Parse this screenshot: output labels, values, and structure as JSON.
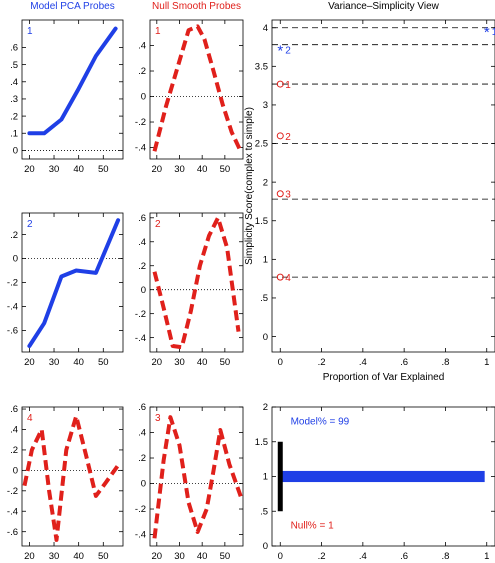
{
  "colors": {
    "model": "#1f3fe6",
    "null": "#e0201b",
    "axis": "#000000",
    "guide": "#000000"
  },
  "chart_data": [
    {
      "id": "model-pc1",
      "type": "line",
      "title": "Model PCA Probes",
      "panel_label": "1",
      "x": [
        20,
        26,
        33,
        40,
        47,
        55
      ],
      "series": [
        {
          "values": [
            0.1,
            0.1,
            0.18,
            0.36,
            0.55,
            0.71
          ],
          "color": "model",
          "dashed": false
        }
      ],
      "xlim": [
        17,
        58
      ],
      "ylim": [
        -0.05,
        0.76
      ],
      "xticks": [
        20,
        30,
        40,
        50
      ],
      "yticks": [
        0,
        0.1,
        0.2,
        0.3,
        0.4,
        0.5,
        0.6
      ],
      "zero_line": true
    },
    {
      "id": "null-1",
      "type": "line",
      "title": "Null Smooth Probes",
      "panel_label": "1",
      "x": [
        19,
        24,
        30,
        34,
        38,
        41,
        45,
        49,
        53,
        57
      ],
      "series": [
        {
          "values": [
            -0.43,
            -0.08,
            0.28,
            0.52,
            0.55,
            0.45,
            0.2,
            -0.06,
            -0.28,
            -0.43
          ],
          "color": "null",
          "dashed": true
        }
      ],
      "xlim": [
        17,
        58
      ],
      "ylim": [
        -0.49,
        0.6
      ],
      "xticks": [
        20,
        30,
        40,
        50
      ],
      "yticks": [
        -0.4,
        -0.2,
        0,
        0.2,
        0.4
      ],
      "zero_line": true
    },
    {
      "id": "model-pc2",
      "type": "line",
      "panel_label": "2",
      "x": [
        20,
        26,
        33,
        39,
        47,
        56
      ],
      "series": [
        {
          "values": [
            -0.73,
            -0.54,
            -0.15,
            -0.1,
            -0.12,
            0.32
          ],
          "color": "model",
          "dashed": false
        }
      ],
      "xlim": [
        17,
        58
      ],
      "ylim": [
        -0.78,
        0.38
      ],
      "xticks": [
        20,
        30,
        40,
        50
      ],
      "yticks": [
        -0.6,
        -0.4,
        -0.2,
        0,
        0.2
      ],
      "zero_line": true
    },
    {
      "id": "null-2",
      "type": "line",
      "panel_label": "2",
      "x": [
        19,
        23,
        27,
        31,
        35,
        39,
        43,
        47,
        51,
        56
      ],
      "series": [
        {
          "values": [
            0.15,
            -0.15,
            -0.47,
            -0.48,
            -0.18,
            0.2,
            0.45,
            0.6,
            0.35,
            -0.35
          ],
          "color": "null",
          "dashed": true
        }
      ],
      "xlim": [
        17,
        58
      ],
      "ylim": [
        -0.52,
        0.64
      ],
      "xticks": [
        20,
        30,
        40,
        50
      ],
      "yticks": [
        -0.4,
        -0.2,
        0,
        0.2,
        0.4,
        0.6
      ],
      "zero_line": true
    },
    {
      "id": "model-pc4",
      "type": "line",
      "panel_label": "4",
      "x": [
        18,
        21,
        25,
        28,
        31,
        35,
        39,
        43,
        47,
        51,
        56
      ],
      "series": [
        {
          "values": [
            -0.15,
            0.2,
            0.4,
            -0.2,
            -0.68,
            0.2,
            0.53,
            0.15,
            -0.25,
            -0.12,
            0.05
          ],
          "color": "null",
          "dashed": true
        }
      ],
      "xlim": [
        17,
        58
      ],
      "ylim": [
        -0.74,
        0.62
      ],
      "xticks": [
        20,
        30,
        40,
        50
      ],
      "yticks": [
        -0.6,
        -0.4,
        -0.2,
        0,
        0.2,
        0.4,
        0.6
      ],
      "zero_line": true
    },
    {
      "id": "null-3",
      "type": "line",
      "panel_label": "3",
      "x": [
        19,
        23,
        26,
        30,
        34,
        38,
        42,
        45,
        48,
        52,
        57
      ],
      "series": [
        {
          "values": [
            -0.43,
            0.18,
            0.52,
            0.3,
            -0.15,
            -0.38,
            -0.2,
            0.1,
            0.42,
            0.15,
            -0.1
          ],
          "color": "null",
          "dashed": true
        }
      ],
      "xlim": [
        17,
        58
      ],
      "ylim": [
        -0.49,
        0.6
      ],
      "xticks": [
        20,
        30,
        40,
        50
      ],
      "yticks": [
        -0.4,
        -0.2,
        0,
        0.2,
        0.4,
        0.6
      ],
      "zero_line": true
    },
    {
      "id": "variance-simplicity",
      "type": "scatter",
      "title": "Variance–Simplicity View",
      "xlabel": "Proportion of Var Explained",
      "ylabel": "Simplicity Score(complex to simple)",
      "xlim": [
        -0.04,
        1.04
      ],
      "ylim": [
        -0.2,
        4.1
      ],
      "xticks": [
        0,
        0.2,
        0.4,
        0.6,
        0.8,
        1
      ],
      "yticks": [
        0,
        0.5,
        1,
        1.5,
        2,
        2.5,
        3,
        3.5,
        4
      ],
      "guide_levels": [
        4.0,
        3.78,
        3.27,
        2.5,
        1.78,
        0.77
      ],
      "points": [
        {
          "label": "1",
          "x": 1.0,
          "y": 3.96,
          "marker": "*",
          "color": "model"
        },
        {
          "label": "2",
          "x": 0.0,
          "y": 3.72,
          "marker": "*",
          "color": "model"
        },
        {
          "label": "1",
          "x": 0.0,
          "y": 3.27,
          "marker": "o",
          "color": "null"
        },
        {
          "label": "2",
          "x": 0.0,
          "y": 2.6,
          "marker": "o",
          "color": "null"
        },
        {
          "label": "3",
          "x": 0.0,
          "y": 1.85,
          "marker": "o",
          "color": "null"
        },
        {
          "label": "4",
          "x": 0.0,
          "y": 0.77,
          "marker": "o",
          "color": "null"
        }
      ]
    },
    {
      "id": "model-null-share",
      "type": "bar",
      "orientation": "horizontal",
      "xlim": [
        -0.04,
        1.04
      ],
      "ylim": [
        0,
        2
      ],
      "xticks": [
        0,
        0.2,
        0.4,
        0.6,
        0.8,
        1
      ],
      "yticks": [
        0,
        0.5,
        1,
        1.5,
        2
      ],
      "model_fraction": 0.99,
      "null_fraction": 0.01,
      "model_label": "Model% = 99",
      "null_label": "Null% = 1"
    }
  ]
}
